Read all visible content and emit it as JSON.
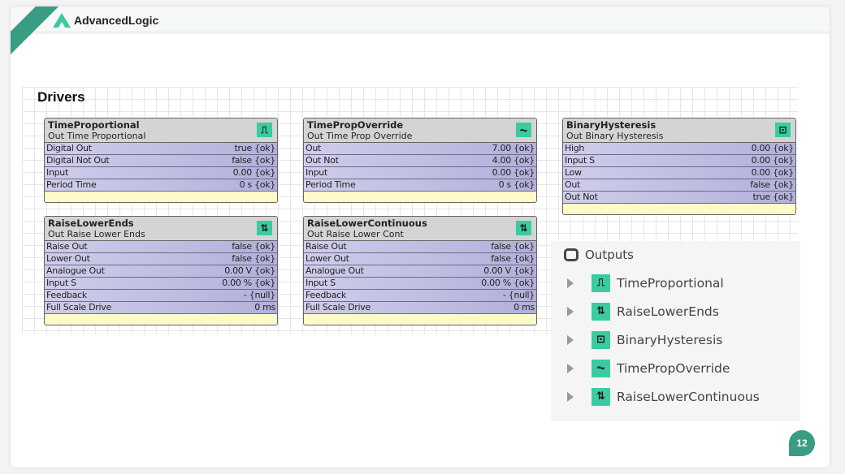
{
  "brand": {
    "name": "AdvancedLogic",
    "accent": "#3a9c82"
  },
  "section_title": "Drivers",
  "blocks": [
    {
      "id": "time-proportional",
      "name": "TimeProportional",
      "subtitle": "Out Time Proportional",
      "icon": "square-wave-icon",
      "glyph": "⎍",
      "rows": [
        [
          "Digital Out",
          "true {ok}"
        ],
        [
          "Digital Not Out",
          "false {ok}"
        ],
        [
          "Input",
          "0.00 {ok}"
        ],
        [
          "Period Time",
          "0 s {ok}"
        ]
      ]
    },
    {
      "id": "time-prop-override",
      "name": "TimePropOverride",
      "subtitle": "Out Time Prop Override",
      "icon": "override-wave-icon",
      "glyph": "⏦",
      "rows": [
        [
          "Out",
          "7.00 {ok}"
        ],
        [
          "Out Not",
          "4.00 {ok}"
        ],
        [
          "Input",
          "0.00 {ok}"
        ],
        [
          "Period Time",
          "0 s {ok}"
        ]
      ]
    },
    {
      "id": "binary-hysteresis",
      "name": "BinaryHysteresis",
      "subtitle": "Out Binary Hysteresis",
      "icon": "hysteresis-icon",
      "glyph": "⊡",
      "rows": [
        [
          "High",
          "0.00 {ok}"
        ],
        [
          "Input S",
          "0.00 {ok}"
        ],
        [
          "Low",
          "0.00 {ok}"
        ],
        [
          "Out",
          "false {ok}"
        ],
        [
          "Out Not",
          "true {ok}"
        ]
      ]
    },
    {
      "id": "raise-lower-ends",
      "name": "RaiseLowerEnds",
      "subtitle": "Out Raise Lower Ends",
      "icon": "raise-lower-icon",
      "glyph": "⇅",
      "rows": [
        [
          "Raise Out",
          "false {ok}"
        ],
        [
          "Lower Out",
          "false {ok}"
        ],
        [
          "Analogue Out",
          "0.00 V {ok}"
        ],
        [
          "Input S",
          "0.00 % {ok}"
        ],
        [
          "Feedback",
          "- {null}"
        ],
        [
          "Full Scale Drive",
          "0 ms"
        ]
      ]
    },
    {
      "id": "raise-lower-continuous",
      "name": "RaiseLowerContinuous",
      "subtitle": "Out Raise Lower Cont",
      "icon": "raise-lower-icon",
      "glyph": "⇅",
      "rows": [
        [
          "Raise Out",
          "false {ok}"
        ],
        [
          "Lower Out",
          "false {ok}"
        ],
        [
          "Analogue Out",
          "0.00 V {ok}"
        ],
        [
          "Input S",
          "0.00 % {ok}"
        ],
        [
          "Feedback",
          "- {null}"
        ],
        [
          "Full Scale Drive",
          "0 ms"
        ]
      ]
    }
  ],
  "outputs": {
    "title": "Outputs",
    "items": [
      {
        "label": "TimeProportional",
        "icon": "square-wave-icon",
        "glyph": "⎍"
      },
      {
        "label": "RaiseLowerEnds",
        "icon": "raise-lower-icon",
        "glyph": "⇅"
      },
      {
        "label": "BinaryHysteresis",
        "icon": "hysteresis-icon",
        "glyph": "⊡"
      },
      {
        "label": "TimePropOverride",
        "icon": "override-wave-icon",
        "glyph": "⏦"
      },
      {
        "label": "RaiseLowerContinuous",
        "icon": "raise-lower-icon",
        "glyph": "⇅"
      }
    ]
  },
  "page_number": "12"
}
